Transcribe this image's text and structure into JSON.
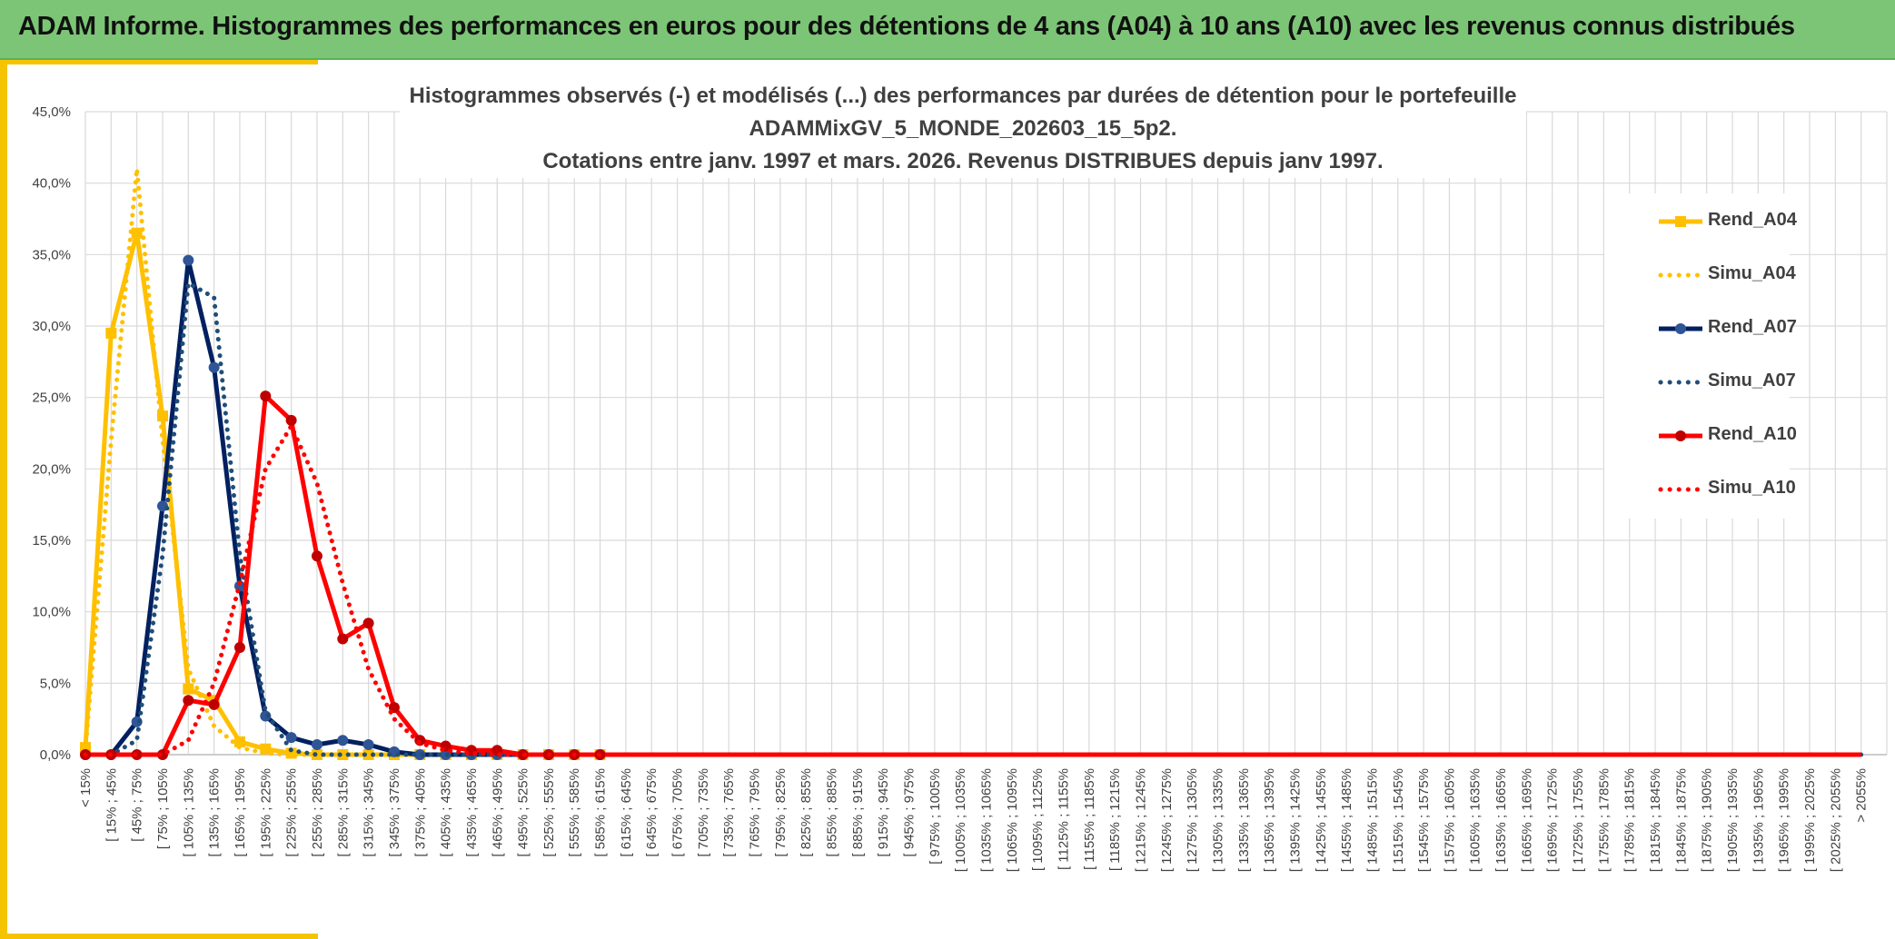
{
  "header": {
    "title": "ADAM Informe. Histogrammes des performances en euros pour des détentions de 4 ans (A04) à 10 ans (A10) avec les revenus connus distribués"
  },
  "colors": {
    "banner": "#7cc576",
    "frame_accent": "#f5c400",
    "grid": "#d9d9d9",
    "text": "#404040"
  },
  "chart_data": {
    "type": "line",
    "title_lines": [
      "Histogrammes observés (-) et modélisés (...) des performances par durées de détention pour le portefeuille",
      "ADAMMixGV_5_MONDE_202603_15_5p2.",
      "Cotations entre janv. 1997 et mars. 2026. Revenus DISTRIBUES depuis janv 1997."
    ],
    "xlabel": "",
    "ylabel": "",
    "ylim": [
      0,
      45
    ],
    "y_ticks": [
      "0,0%",
      "5,0%",
      "10,0%",
      "15,0%",
      "20,0%",
      "25,0%",
      "30,0%",
      "35,0%",
      "40,0%",
      "45,0%"
    ],
    "grid": true,
    "legend_position": "right",
    "categories": [
      "< 15%",
      "[ 15% ; 45%",
      "[ 45% ; 75%",
      "[ 75% ; 105%",
      "[ 105% ; 135%",
      "[ 135% ; 165%",
      "[ 165% ; 195%",
      "[ 195% ; 225%",
      "[ 225% ; 255%",
      "[ 255% ; 285%",
      "[ 285% ; 315%",
      "[ 315% ; 345%",
      "[ 345% ; 375%",
      "[ 375% ; 405%",
      "[ 405% ; 435%",
      "[ 435% ; 465%",
      "[ 465% ; 495%",
      "[ 495% ; 525%",
      "[ 525% ; 555%",
      "[ 555% ; 585%",
      "[ 585% ; 615%",
      "[ 615% ; 645%",
      "[ 645% ; 675%",
      "[ 675% ; 705%",
      "[ 705% ; 735%",
      "[ 735% ; 765%",
      "[ 765% ; 795%",
      "[ 795% ; 825%",
      "[ 825% ; 855%",
      "[ 855% ; 885%",
      "[ 885% ; 915%",
      "[ 915% ; 945%",
      "[ 945% ; 975%",
      "[ 975% ; 1005%",
      "[ 1005% ; 1035%",
      "[ 1035% ; 1065%",
      "[ 1065% ; 1095%",
      "[ 1095% ; 1125%",
      "[ 1125% ; 1155%",
      "[ 1155% ; 1185%",
      "[ 1185% ; 1215%",
      "[ 1215% ; 1245%",
      "[ 1245% ; 1275%",
      "[ 1275% ; 1305%",
      "[ 1305% ; 1335%",
      "[ 1335% ; 1365%",
      "[ 1365% ; 1395%",
      "[ 1395% ; 1425%",
      "[ 1425% ; 1455%",
      "[ 1455% ; 1485%",
      "[ 1485% ; 1515%",
      "[ 1515% ; 1545%",
      "[ 1545% ; 1575%",
      "[ 1575% ; 1605%",
      "[ 1605% ; 1635%",
      "[ 1635% ; 1665%",
      "[ 1665% ; 1695%",
      "[ 1695% ; 1725%",
      "[ 1725% ; 1755%",
      "[ 1755% ; 1785%",
      "[ 1785% ; 1815%",
      "[ 1815% ; 1845%",
      "[ 1845% ; 1875%",
      "[ 1875% ; 1905%",
      "[ 1905% ; 1935%",
      "[ 1935% ; 1965%",
      "[ 1965% ; 1995%",
      "[ 1995% ; 2025%",
      "[ 2025% ; 2055%",
      "> 2055%"
    ],
    "series": [
      {
        "name": "Rend_A04",
        "color": "#ffc000",
        "style": "solid",
        "marker": "square",
        "values": [
          0.5,
          29.5,
          36.5,
          23.7,
          4.6,
          3.8,
          0.9,
          0.4,
          0.1,
          0,
          0,
          0,
          0,
          0,
          0,
          0,
          0,
          0,
          0,
          0,
          0,
          0,
          0,
          0,
          0,
          0,
          0,
          0,
          0,
          0,
          0,
          0,
          0,
          0,
          0,
          0,
          0,
          0,
          0,
          0,
          0,
          0,
          0,
          0,
          0,
          0,
          0,
          0,
          0,
          0,
          0,
          0,
          0,
          0,
          0,
          0,
          0,
          0,
          0,
          0,
          0,
          0,
          0,
          0,
          0,
          0,
          0,
          0,
          0,
          0
        ]
      },
      {
        "name": "Simu_A04",
        "color": "#ffc000",
        "style": "dotted",
        "marker": "none",
        "values": [
          0.3,
          22,
          41,
          22,
          6,
          2,
          0.5,
          0.1,
          0,
          0,
          0,
          0,
          0,
          0,
          0,
          0,
          0,
          0,
          0,
          0,
          0,
          0,
          0,
          0,
          0,
          0,
          0,
          0,
          0,
          0,
          0,
          0,
          0,
          0,
          0,
          0,
          0,
          0,
          0,
          0,
          0,
          0,
          0,
          0,
          0,
          0,
          0,
          0,
          0,
          0,
          0,
          0,
          0,
          0,
          0,
          0,
          0,
          0,
          0,
          0,
          0,
          0,
          0,
          0,
          0,
          0,
          0,
          0,
          0,
          0
        ]
      },
      {
        "name": "Rend_A07",
        "color": "#002060",
        "style": "solid",
        "marker": "circle",
        "values": [
          0,
          0,
          2.3,
          17.4,
          34.6,
          27.1,
          11.8,
          2.7,
          1.2,
          0.7,
          1.0,
          0.7,
          0.2,
          0,
          0,
          0,
          0,
          0,
          0,
          0,
          0,
          0,
          0,
          0,
          0,
          0,
          0,
          0,
          0,
          0,
          0,
          0,
          0,
          0,
          0,
          0,
          0,
          0,
          0,
          0,
          0,
          0,
          0,
          0,
          0,
          0,
          0,
          0,
          0,
          0,
          0,
          0,
          0,
          0,
          0,
          0,
          0,
          0,
          0,
          0,
          0,
          0,
          0,
          0,
          0,
          0,
          0,
          0,
          0,
          0
        ]
      },
      {
        "name": "Simu_A07",
        "color": "#1f4e79",
        "style": "dotted",
        "marker": "none",
        "values": [
          0,
          0,
          1,
          14,
          33,
          32,
          14,
          3,
          0.3,
          0,
          0,
          0,
          0,
          0,
          0,
          0,
          0,
          0,
          0,
          0,
          0,
          0,
          0,
          0,
          0,
          0,
          0,
          0,
          0,
          0,
          0,
          0,
          0,
          0,
          0,
          0,
          0,
          0,
          0,
          0,
          0,
          0,
          0,
          0,
          0,
          0,
          0,
          0,
          0,
          0,
          0,
          0,
          0,
          0,
          0,
          0,
          0,
          0,
          0,
          0,
          0,
          0,
          0,
          0,
          0,
          0,
          0,
          0,
          0,
          0
        ]
      },
      {
        "name": "Rend_A10",
        "color": "#ff0000",
        "style": "solid",
        "marker": "circle",
        "values": [
          0,
          0,
          0,
          0,
          3.8,
          3.5,
          7.5,
          25.1,
          23.4,
          13.9,
          8.1,
          9.2,
          3.3,
          1.0,
          0.6,
          0.3,
          0.3,
          0,
          0,
          0,
          0,
          0,
          0,
          0,
          0,
          0,
          0,
          0,
          0,
          0,
          0,
          0,
          0,
          0,
          0,
          0,
          0,
          0,
          0,
          0,
          0,
          0,
          0,
          0,
          0,
          0,
          0,
          0,
          0,
          0,
          0,
          0,
          0,
          0,
          0,
          0,
          0,
          0,
          0,
          0,
          0,
          0,
          0,
          0,
          0,
          0,
          0,
          0,
          0,
          0
        ]
      },
      {
        "name": "Simu_A10",
        "color": "#ff0000",
        "style": "dotted",
        "marker": "none",
        "values": [
          0,
          0,
          0,
          0,
          1,
          5,
          12,
          20,
          23,
          19,
          12,
          6,
          2.5,
          0.8,
          0.3,
          0.1,
          0,
          0,
          0,
          0,
          0,
          0,
          0,
          0,
          0,
          0,
          0,
          0,
          0,
          0,
          0,
          0,
          0,
          0,
          0,
          0,
          0,
          0,
          0,
          0,
          0,
          0,
          0,
          0,
          0,
          0,
          0,
          0,
          0,
          0,
          0,
          0,
          0,
          0,
          0,
          0,
          0,
          0,
          0,
          0,
          0,
          0,
          0,
          0,
          0,
          0,
          0,
          0,
          0,
          0
        ]
      }
    ]
  }
}
